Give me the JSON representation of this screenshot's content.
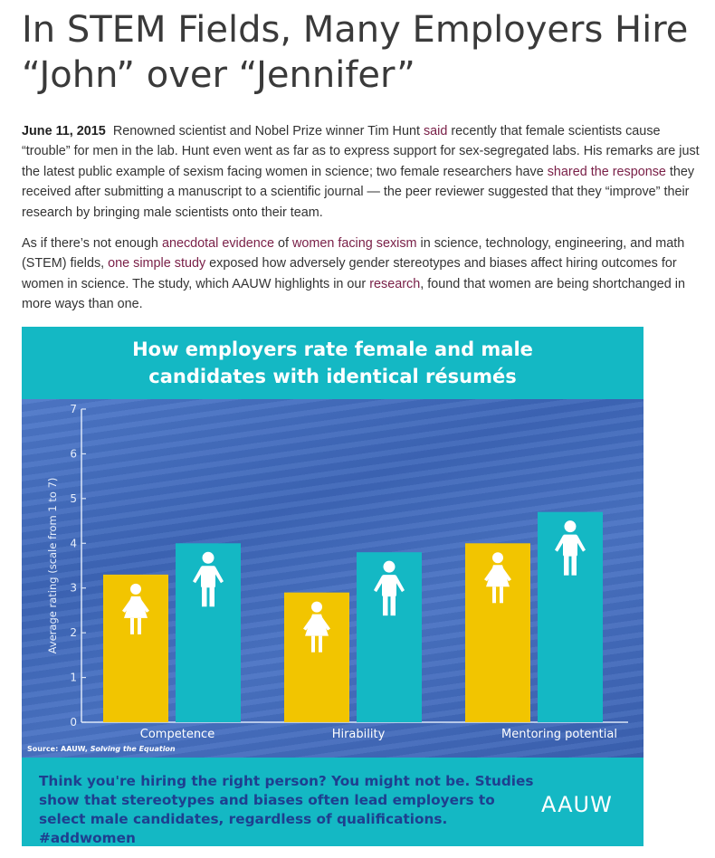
{
  "article": {
    "headline_line1": "In STEM Fields, Many Employers Hire",
    "headline_line2": "“John” over “Jennifer”",
    "date": "June 11, 2015",
    "p1_a": "Renowned scientist and Nobel Prize winner Tim Hunt ",
    "p1_link1": "said",
    "p1_b": " recently that female scientists cause “trouble” for men in the lab. Hunt even went as far as to express support for sex-segregated labs. His remarks are just the latest public example of sexism facing women in science; two female researchers have ",
    "p1_link2": "shared the response",
    "p1_c": " they received after submitting a manuscript to a scientific journal — the peer reviewer suggested that they “improve” their research by bringing male scientists onto their team.",
    "p2_a": "As if there’s not enough ",
    "p2_link1": "anecdotal evidence",
    "p2_b": " of ",
    "p2_link2": "women facing sexism",
    "p2_c": " in science, technology, engineering, and math (STEM) fields, ",
    "p2_link3": "one simple study",
    "p2_d": " exposed how adversely gender stereotypes and biases affect hiring outcomes for women in science. The study, which AAUW highlights in our ",
    "p2_link4": "research",
    "p2_e": ", found that women are being shortchanged in more ways than one."
  },
  "infographic": {
    "source_prefix": "Source: AAUW, ",
    "source_title": "Solving the Equation",
    "footer_text": "Think you're hiring the right person? You might not be. Studies show that stereotypes and biases often lead employers to select male candidates, regardless of qualifications. #addwomen",
    "logo": "AAUW",
    "colors": {
      "female": "#f2c500",
      "male": "#14b8c4",
      "background": "#14b8c4",
      "plot": "#4a73c4"
    },
    "icons": {
      "female": "female-figure-icon",
      "male": "male-figure-icon"
    }
  },
  "chart_data": {
    "type": "bar",
    "title_line1": "How employers rate female and male",
    "title_line2": "candidates with identical résumés",
    "ylabel": "Average rating (scale from 1 to 7)",
    "categories": [
      "Competence",
      "Hirability",
      "Mentoring potential"
    ],
    "ylim": [
      0,
      7
    ],
    "yticks": [
      "0",
      "1",
      "2",
      "3",
      "4",
      "5",
      "6",
      "7"
    ],
    "series": [
      {
        "values": [
          3.3,
          2.9,
          4.0
        ]
      },
      {
        "values": [
          4.0,
          3.8,
          4.7
        ]
      }
    ],
    "grid": false
  }
}
